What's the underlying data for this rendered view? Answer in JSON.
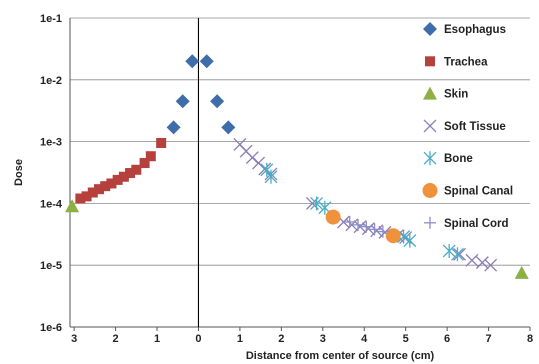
{
  "chart_data": {
    "type": "scatter",
    "title": "",
    "xlabel": "Distance from center of source (cm)",
    "ylabel": "Dose",
    "yscale": "log",
    "ylim": [
      1e-06,
      0.1
    ],
    "ytick_labels": [
      "1e-6",
      "1e-5",
      "1e-4",
      "1e-3",
      "1e-2",
      "1e-1"
    ],
    "xlim": [
      -3.1,
      8.0
    ],
    "xtick_values": [
      -3,
      -2,
      -1,
      0,
      1,
      2,
      3,
      4,
      5,
      6,
      7,
      8
    ],
    "xtick_labels": [
      "3",
      "2",
      "1",
      "0",
      "1",
      "2",
      "3",
      "4",
      "5",
      "6",
      "7",
      "8"
    ],
    "grid": true,
    "legend_position": "right",
    "series": [
      {
        "name": "Esophagus",
        "marker": "diamond",
        "color": "#3F6DAA",
        "x": [
          -0.6,
          -0.38,
          -0.15,
          0.2,
          0.45,
          0.72
        ],
        "y": [
          0.0017,
          0.0045,
          0.02,
          0.02,
          0.0045,
          0.0017
        ]
      },
      {
        "name": "Trachea",
        "marker": "square",
        "color": "#B5403C",
        "x": [
          -2.85,
          -2.7,
          -2.55,
          -2.4,
          -2.25,
          -2.1,
          -1.95,
          -1.8,
          -1.65,
          -1.5,
          -1.3,
          -1.15,
          -0.9
        ],
        "y": [
          0.00012,
          0.00013,
          0.00015,
          0.00017,
          0.00019,
          0.00021,
          0.00024,
          0.00027,
          0.00031,
          0.00035,
          0.00045,
          0.00058,
          0.00095
        ]
      },
      {
        "name": "Skin",
        "marker": "triangle",
        "color": "#8DB045",
        "x": [
          -3.05,
          7.8
        ],
        "y": [
          9e-05,
          7.5e-06
        ]
      },
      {
        "name": "Soft Tissue",
        "marker": "x",
        "color": "#8B7CB5",
        "x": [
          1.0,
          1.15,
          1.3,
          1.45,
          1.6,
          1.75,
          2.75,
          3.5,
          3.7,
          3.9,
          4.1,
          4.3,
          4.5,
          4.8,
          5.0,
          6.3,
          6.6,
          6.85,
          7.05
        ],
        "y": [
          0.0009,
          0.0007,
          0.00055,
          0.00045,
          0.00036,
          0.0003,
          0.0001,
          5e-05,
          4.5e-05,
          4.2e-05,
          3.9e-05,
          3.6e-05,
          3.4e-05,
          3e-05,
          2.8e-05,
          1.5e-05,
          1.2e-05,
          1.1e-05,
          1e-05
        ]
      },
      {
        "name": "Bone",
        "marker": "star",
        "color": "#4BACC6",
        "x": [
          1.65,
          1.75,
          2.85,
          3.05,
          4.95,
          5.1,
          6.05,
          6.25
        ],
        "y": [
          0.00035,
          0.00027,
          0.0001,
          8.5e-05,
          2.9e-05,
          2.5e-05,
          1.7e-05,
          1.5e-05
        ]
      },
      {
        "name": "Spinal Canal",
        "marker": "circle",
        "color": "#F0913C",
        "x": [
          3.25,
          4.7
        ],
        "y": [
          6e-05,
          3e-05
        ]
      },
      {
        "name": "Spinal Cord",
        "marker": "plus",
        "color": "#8A8FC8",
        "x": [
          3.65,
          3.85,
          4.05,
          4.25,
          4.45
        ],
        "y": [
          5e-05,
          4.5e-05,
          4.2e-05,
          3.8e-05,
          3.5e-05
        ]
      }
    ]
  }
}
